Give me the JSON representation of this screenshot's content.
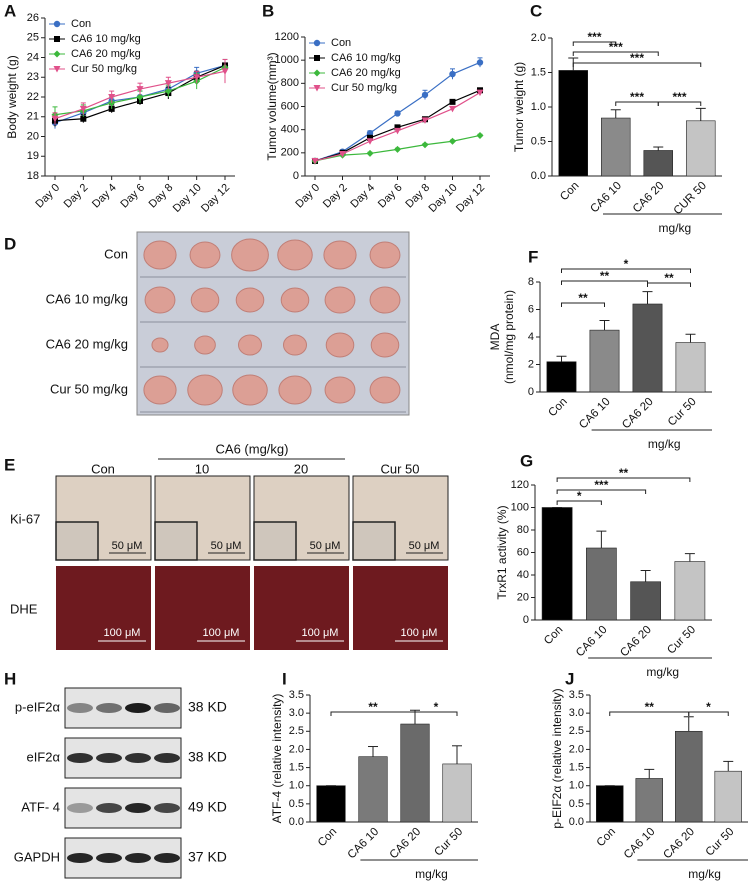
{
  "chart_data": [
    {
      "panel": "A",
      "type": "line",
      "ylabel": "Body weight (g)",
      "categories": [
        "Day 0",
        "Day 2",
        "Day 4",
        "Day 6",
        "Day 8",
        "Day 10",
        "Day 12"
      ],
      "ylim": [
        18,
        26
      ],
      "yticks": [
        18,
        19,
        20,
        21,
        22,
        23,
        24,
        25,
        26
      ],
      "series": [
        {
          "name": "Con",
          "color": "#3a6fc4",
          "marker": "circle",
          "values": [
            20.7,
            21.2,
            21.8,
            22.0,
            22.4,
            23.2,
            23.6
          ],
          "errors": [
            0.3,
            0.3,
            0.3,
            0.3,
            0.3,
            0.3,
            0.3
          ]
        },
        {
          "name": "CA6 10 mg/kg",
          "color": "#000000",
          "marker": "square",
          "values": [
            20.8,
            20.9,
            21.4,
            21.8,
            22.2,
            23.0,
            23.6
          ],
          "errors": [
            0.3,
            0.2,
            0.2,
            0.2,
            0.3,
            0.3,
            0.3
          ]
        },
        {
          "name": "CA6 20 mg/kg",
          "color": "#3cb83c",
          "marker": "diamond",
          "values": [
            21.1,
            21.3,
            21.7,
            22.0,
            22.3,
            22.8,
            23.5
          ],
          "errors": [
            0.4,
            0.3,
            0.3,
            0.3,
            0.3,
            0.4,
            0.4
          ]
        },
        {
          "name": "Cur 50 mg/kg",
          "color": "#e0508a",
          "marker": "triangle",
          "values": [
            20.9,
            21.4,
            22.0,
            22.4,
            22.7,
            23.0,
            23.3
          ],
          "errors": [
            0.3,
            0.3,
            0.3,
            0.3,
            0.3,
            0.3,
            0.6
          ]
        }
      ]
    },
    {
      "panel": "B",
      "type": "line",
      "ylabel": "Tumor volume(mm³)",
      "categories": [
        "Day 0",
        "Day 2",
        "Day 4",
        "Day 6",
        "Day 8",
        "Day 10",
        "Day 12"
      ],
      "ylim": [
        0,
        1200
      ],
      "yticks": [
        0,
        200,
        400,
        600,
        800,
        1000,
        1200
      ],
      "series": [
        {
          "name": "Con",
          "color": "#3a6fc4",
          "marker": "circle",
          "values": [
            130,
            210,
            370,
            540,
            700,
            880,
            980
          ],
          "errors": [
            10,
            15,
            20,
            20,
            40,
            45,
            40
          ]
        },
        {
          "name": "CA6 10 mg/kg",
          "color": "#000000",
          "marker": "square",
          "values": [
            130,
            200,
            330,
            420,
            490,
            640,
            740
          ],
          "errors": [
            10,
            10,
            15,
            15,
            15,
            15,
            15
          ]
        },
        {
          "name": "CA6 20 mg/kg",
          "color": "#3cb83c",
          "marker": "diamond",
          "values": [
            130,
            180,
            195,
            230,
            270,
            300,
            350
          ],
          "errors": [
            10,
            10,
            10,
            10,
            10,
            10,
            10
          ]
        },
        {
          "name": "Cur 50 mg/kg",
          "color": "#e0508a",
          "marker": "triangle",
          "values": [
            130,
            190,
            300,
            390,
            480,
            580,
            720
          ],
          "errors": [
            10,
            10,
            15,
            15,
            15,
            15,
            15
          ]
        }
      ]
    },
    {
      "panel": "C",
      "type": "bar",
      "ylabel": [
        "Tumor weight (g)"
      ],
      "categories": [
        "Con",
        "CA6 10",
        "CA6 20",
        "CUR 50"
      ],
      "values": [
        1.53,
        0.84,
        0.37,
        0.8
      ],
      "errors": [
        0.18,
        0.12,
        0.05,
        0.18
      ],
      "colors": [
        "#000000",
        "#8a8a8a",
        "#555555",
        "#c4c4c4"
      ],
      "ylim": [
        0,
        2.0
      ],
      "yticks": [
        {
          "value": 0,
          "label": "0.0"
        },
        0.5,
        {
          "value": 1,
          "label": "1.0"
        },
        1.5,
        {
          "value": 2,
          "label": "2.0"
        }
      ],
      "group_label": "mg/kg",
      "comparisons": [
        {
          "pair": [
            0,
            1
          ],
          "label": "***"
        },
        {
          "pair": [
            0,
            2
          ],
          "label": "***"
        },
        {
          "pair": [
            0,
            3
          ],
          "label": "***"
        },
        {
          "pair": [
            1,
            2
          ],
          "label": "***"
        },
        {
          "pair": [
            2,
            3
          ],
          "label": "***"
        }
      ]
    },
    {
      "panel": "F",
      "type": "bar",
      "ylabel": [
        "MDA",
        "(nmol/mg protein)"
      ],
      "categories": [
        "Con",
        "CA6 10",
        "CA6 20",
        "Cur 50"
      ],
      "values": [
        2.2,
        4.5,
        6.4,
        3.6
      ],
      "errors": [
        0.4,
        0.7,
        0.9,
        0.6
      ],
      "colors": [
        "#000000",
        "#8a8a8a",
        "#555555",
        "#c4c4c4"
      ],
      "ylim": [
        0,
        8
      ],
      "yticks": [
        0,
        2,
        4,
        6,
        8
      ],
      "group_label": "mg/kg",
      "comparisons": [
        {
          "pair": [
            0,
            1
          ],
          "label": "**"
        },
        {
          "pair": [
            0,
            2
          ],
          "label": "**"
        },
        {
          "pair": [
            0,
            3
          ],
          "label": "*"
        },
        {
          "pair": [
            2,
            3
          ],
          "label": "**"
        }
      ]
    },
    {
      "panel": "G",
      "type": "bar",
      "ylabel": [
        "TrxR1 activity (%)"
      ],
      "categories": [
        "Con",
        "CA6 10",
        "CA6 20",
        "Cur 50"
      ],
      "values": [
        100,
        64,
        34,
        52
      ],
      "errors": [
        0,
        15,
        10,
        7
      ],
      "colors": [
        "#000000",
        "#6e6e6e",
        "#555555",
        "#c4c4c4"
      ],
      "ylim": [
        0,
        120
      ],
      "yticks": [
        0,
        20,
        40,
        60,
        80,
        100,
        120
      ],
      "group_label": "mg/kg",
      "comparisons": [
        {
          "pair": [
            0,
            1
          ],
          "label": "*"
        },
        {
          "pair": [
            0,
            2
          ],
          "label": "***"
        },
        {
          "pair": [
            0,
            3
          ],
          "label": "**"
        }
      ]
    },
    {
      "panel": "I",
      "type": "bar",
      "ylabel": [
        "ATF-4 (relative intensity)"
      ],
      "categories": [
        "Con",
        "CA6 10",
        "CA6 20",
        "Cur 50"
      ],
      "values": [
        1.0,
        1.8,
        2.7,
        1.6
      ],
      "errors": [
        0,
        0.28,
        0.38,
        0.5
      ],
      "colors": [
        "#000000",
        "#7a7a7a",
        "#6a6a6a",
        "#c4c4c4"
      ],
      "ylim": [
        0,
        3.5
      ],
      "yticks": [
        {
          "value": 0,
          "label": "0.0"
        },
        0.5,
        {
          "value": 1,
          "label": "1.0"
        },
        1.5,
        {
          "value": 2,
          "label": "2.0"
        },
        2.5,
        {
          "value": 3,
          "label": "3.0"
        },
        3.5
      ],
      "group_label": "mg/kg",
      "comparisons": [
        {
          "pair": [
            0,
            2
          ],
          "label": "**"
        },
        {
          "pair": [
            2,
            3
          ],
          "label": "*"
        }
      ]
    },
    {
      "panel": "J",
      "type": "bar",
      "ylabel": [
        "p-EIF2α (relative intensity)"
      ],
      "categories": [
        "Con",
        "CA6 10",
        "CA6 20",
        "Cur 50"
      ],
      "values": [
        1.0,
        1.2,
        2.5,
        1.4
      ],
      "errors": [
        0,
        0.25,
        0.4,
        0.27
      ],
      "colors": [
        "#000000",
        "#7a7a7a",
        "#6a6a6a",
        "#c4c4c4"
      ],
      "ylim": [
        0,
        3.5
      ],
      "yticks": [
        {
          "value": 0,
          "label": "0.0"
        },
        0.5,
        {
          "value": 1,
          "label": "1.0"
        },
        1.5,
        {
          "value": 2,
          "label": "2.0"
        },
        2.5,
        {
          "value": 3,
          "label": "3.0"
        },
        3.5
      ],
      "group_label": "mg/kg",
      "comparisons": [
        {
          "pair": [
            0,
            2
          ],
          "label": "**"
        },
        {
          "pair": [
            2,
            3
          ],
          "label": "*"
        }
      ]
    }
  ],
  "tumor_photo": {
    "panel": "D",
    "rows": [
      "Con",
      "CA6 10 mg/kg",
      "CA6 20 mg/kg",
      "Cur 50 mg/kg"
    ]
  },
  "histology": {
    "panel": "E",
    "group_header": "CA6 (mg/kg)",
    "columns": [
      "Con",
      "10",
      "20",
      "Cur 50"
    ],
    "rows": [
      "Ki-67",
      "DHE"
    ],
    "scale_bars": [
      "50 μM",
      "100 μM"
    ]
  },
  "western_blot": {
    "panel": "H",
    "bands": [
      {
        "label": "p-eIF2α",
        "size": "38 KD"
      },
      {
        "label": "eIF2α",
        "size": "38 KD"
      },
      {
        "label": "ATF- 4",
        "size": "49 KD"
      },
      {
        "label": "GAPDH",
        "size": "37 KD"
      }
    ]
  }
}
